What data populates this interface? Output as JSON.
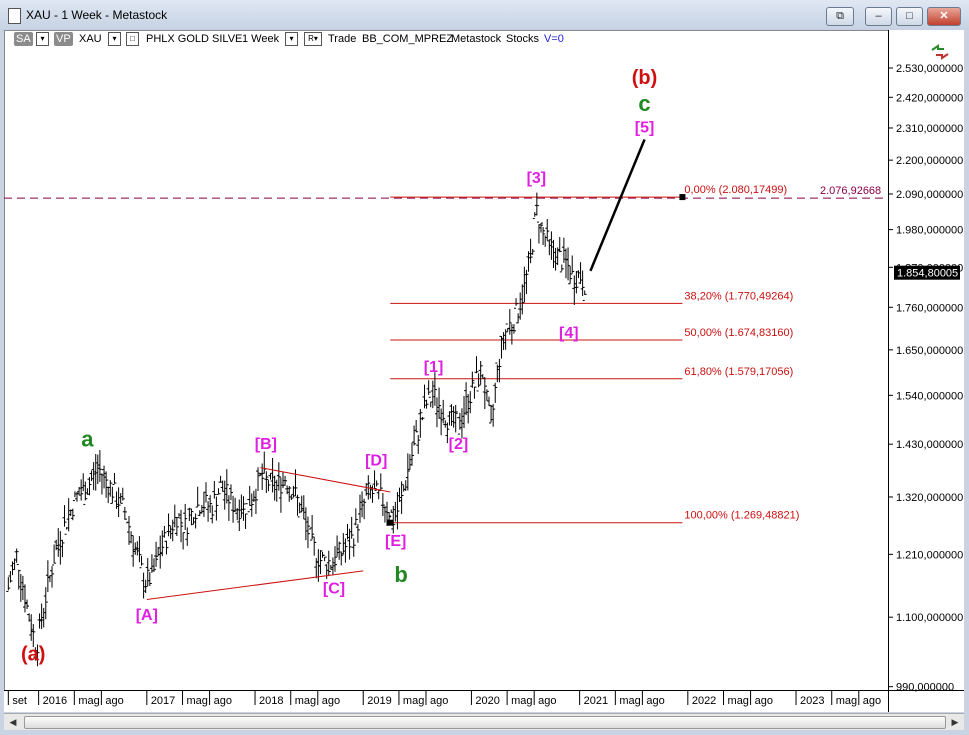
{
  "window": {
    "title": "XAU - 1 Week - Metastock",
    "buttons": {
      "restore": "⧉",
      "minimize": "–",
      "maximize": "□",
      "close": "✕"
    }
  },
  "toolbar": {
    "sa": "SA",
    "sa_drop": "▾",
    "vp": "VP",
    "symbol": "XAU",
    "symbol_drop": "▾",
    "symbol_check": "□",
    "security_name": "PHLX GOLD SILVE",
    "periodicity": "1 Week",
    "periodicity_drop": "▾",
    "r_label": "R▾",
    "trade_label": "Trade",
    "template": "BB_COM_MPREZ",
    "source": "Metastock",
    "category": "Stocks",
    "v_label": "V=0"
  },
  "chart_data": {
    "type": "candlestick",
    "symbol": "XAU",
    "title": "",
    "xlabel": "",
    "ylabel": "",
    "y_axis": {
      "ticks": [
        2530,
        2420,
        2310,
        2200,
        2090,
        1980,
        1870,
        1760,
        1650,
        1540,
        1430,
        1320,
        1210,
        1100,
        990
      ],
      "tick_labels": [
        "2.530,000000",
        "2.420,000000",
        "2.310,000000",
        "2.200,000000",
        "2.090,000000",
        "1.980,000000",
        "1.870,000000",
        "1.760,000000",
        "1.650,000000",
        "1.540,000000",
        "1.430,000000",
        "1.320,000000",
        "1.210,000000",
        "1.100,000000",
        "990,000000"
      ],
      "ylim": [
        985,
        2600
      ],
      "scale": "log",
      "current_value_label": "1.854,80005",
      "current_value": 1854.8
    },
    "x_axis": {
      "labels": [
        {
          "t": "set",
          "x": 2015.72
        },
        {
          "t": "2016",
          "x": 2016.0
        },
        {
          "t": "mag",
          "x": 2016.33
        },
        {
          "t": "ago",
          "x": 2016.58
        },
        {
          "t": "2017",
          "x": 2017.0
        },
        {
          "t": "mag",
          "x": 2017.33
        },
        {
          "t": "ago",
          "x": 2017.58
        },
        {
          "t": "2018",
          "x": 2018.0
        },
        {
          "t": "mag",
          "x": 2018.33
        },
        {
          "t": "ago",
          "x": 2018.58
        },
        {
          "t": "2019",
          "x": 2019.0
        },
        {
          "t": "mag",
          "x": 2019.33
        },
        {
          "t": "ago",
          "x": 2019.58
        },
        {
          "t": "2020",
          "x": 2020.0
        },
        {
          "t": "mag",
          "x": 2020.33
        },
        {
          "t": "ago",
          "x": 2020.58
        },
        {
          "t": "2021",
          "x": 2021.0
        },
        {
          "t": "mag",
          "x": 2021.33
        },
        {
          "t": "ago",
          "x": 2021.58
        },
        {
          "t": "2022",
          "x": 2022.0
        },
        {
          "t": "mag",
          "x": 2022.33
        },
        {
          "t": "ago",
          "x": 2022.58
        },
        {
          "t": "2023",
          "x": 2023.0
        },
        {
          "t": "mag",
          "x": 2023.33
        },
        {
          "t": "ago",
          "x": 2023.58
        }
      ],
      "xlim": [
        2015.68,
        2023.85
      ]
    },
    "price_path": [
      [
        2015.72,
        1150
      ],
      [
        2015.8,
        1210
      ],
      [
        2015.9,
        1110
      ],
      [
        2015.98,
        1050
      ],
      [
        2016.05,
        1120
      ],
      [
        2016.15,
        1210
      ],
      [
        2016.25,
        1270
      ],
      [
        2016.35,
        1320
      ],
      [
        2016.45,
        1340
      ],
      [
        2016.55,
        1380
      ],
      [
        2016.65,
        1345
      ],
      [
        2016.72,
        1320
      ],
      [
        2016.8,
        1290
      ],
      [
        2016.9,
        1215
      ],
      [
        2016.98,
        1160
      ],
      [
        2017.05,
        1170
      ],
      [
        2017.12,
        1215
      ],
      [
        2017.2,
        1250
      ],
      [
        2017.28,
        1285
      ],
      [
        2017.35,
        1260
      ],
      [
        2017.42,
        1290
      ],
      [
        2017.5,
        1310
      ],
      [
        2017.6,
        1300
      ],
      [
        2017.68,
        1340
      ],
      [
        2017.75,
        1320
      ],
      [
        2017.82,
        1300
      ],
      [
        2017.9,
        1300
      ],
      [
        2017.98,
        1320
      ],
      [
        2018.05,
        1360
      ],
      [
        2018.12,
        1350
      ],
      [
        2018.2,
        1340
      ],
      [
        2018.28,
        1360
      ],
      [
        2018.38,
        1320
      ],
      [
        2018.46,
        1275
      ],
      [
        2018.52,
        1230
      ],
      [
        2018.6,
        1200
      ],
      [
        2018.7,
        1195
      ],
      [
        2018.8,
        1215
      ],
      [
        2018.9,
        1240
      ],
      [
        2018.98,
        1290
      ],
      [
        2019.05,
        1330
      ],
      [
        2019.12,
        1325
      ],
      [
        2019.2,
        1310
      ],
      [
        2019.28,
        1275
      ],
      [
        2019.35,
        1310
      ],
      [
        2019.42,
        1380
      ],
      [
        2019.5,
        1450
      ],
      [
        2019.58,
        1520
      ],
      [
        2019.65,
        1540
      ],
      [
        2019.72,
        1510
      ],
      [
        2019.8,
        1480
      ],
      [
        2019.88,
        1470
      ],
      [
        2019.95,
        1520
      ],
      [
        2020.02,
        1560
      ],
      [
        2020.1,
        1600
      ],
      [
        2020.18,
        1460
      ],
      [
        2020.25,
        1620
      ],
      [
        2020.32,
        1700
      ],
      [
        2020.4,
        1730
      ],
      [
        2020.48,
        1800
      ],
      [
        2020.55,
        1900
      ],
      [
        2020.6,
        2040
      ],
      [
        2020.65,
        1980
      ],
      [
        2020.72,
        1930
      ],
      [
        2020.8,
        1900
      ],
      [
        2020.88,
        1880
      ],
      [
        2020.94,
        1840
      ],
      [
        2021.0,
        1850
      ],
      [
        2021.06,
        1820
      ]
    ],
    "fibonacci": [
      {
        "label": "0,00% (2.080,17499)",
        "value": 2080.17
      },
      {
        "label": "38,20% (1.770,49264)",
        "value": 1770.49
      },
      {
        "label": "50,00% (1.674,83160)",
        "value": 1674.83
      },
      {
        "label": "61,80% (1.579,17056)",
        "value": 1579.17
      },
      {
        "label": "100,00% (1.269,48821)",
        "value": 1269.49
      }
    ],
    "fib_x_range": [
      2019.25,
      2021.95
    ],
    "horizontal_level": {
      "label": "2.076,92668",
      "value": 2076.93
    },
    "triangle_lines": [
      {
        "from": [
          2017.0,
          1130
        ],
        "to": [
          2019.0,
          1180
        ]
      },
      {
        "from": [
          2018.05,
          1380
        ],
        "to": [
          2019.25,
          1330
        ]
      }
    ],
    "projection_line": {
      "from": [
        2021.1,
        1860
      ],
      "to": [
        2021.6,
        2270
      ]
    },
    "wave_labels": [
      {
        "text": "(a)",
        "x": 2015.95,
        "y": 1030,
        "color": "#d01010",
        "size": 20
      },
      {
        "text": "a",
        "x": 2016.45,
        "y": 1425,
        "color": "#228822",
        "size": 22
      },
      {
        "text": "[A]",
        "x": 2017.0,
        "y": 1095,
        "color": "#e020e0",
        "size": 16
      },
      {
        "text": "[B]",
        "x": 2018.1,
        "y": 1420,
        "color": "#e020e0",
        "size": 16
      },
      {
        "text": "[C]",
        "x": 2018.73,
        "y": 1140,
        "color": "#e020e0",
        "size": 16
      },
      {
        "text": "[D]",
        "x": 2019.12,
        "y": 1385,
        "color": "#e020e0",
        "size": 16
      },
      {
        "text": "[E]",
        "x": 2019.3,
        "y": 1225,
        "color": "#e020e0",
        "size": 16
      },
      {
        "text": "b",
        "x": 2019.35,
        "y": 1160,
        "color": "#228822",
        "size": 22
      },
      {
        "text": "[1]",
        "x": 2019.65,
        "y": 1595,
        "color": "#e020e0",
        "size": 16
      },
      {
        "text": "[2]",
        "x": 2019.88,
        "y": 1420,
        "color": "#e020e0",
        "size": 16
      },
      {
        "text": "[3]",
        "x": 2020.6,
        "y": 2125,
        "color": "#e020e0",
        "size": 16
      },
      {
        "text": "[4]",
        "x": 2020.9,
        "y": 1680,
        "color": "#e020e0",
        "size": 16
      },
      {
        "text": "[5]",
        "x": 2021.6,
        "y": 2295,
        "color": "#e020e0",
        "size": 16
      },
      {
        "text": "c",
        "x": 2021.6,
        "y": 2370,
        "color": "#228822",
        "size": 22
      },
      {
        "text": "(b)",
        "x": 2021.6,
        "y": 2470,
        "color": "#d01010",
        "size": 20
      }
    ],
    "colors": {
      "price": "#000000",
      "fibonacci": "#cc1010",
      "level": "#880044",
      "triangle": "#cc1010",
      "projection": "#000000",
      "axis_text": "#000000"
    }
  }
}
